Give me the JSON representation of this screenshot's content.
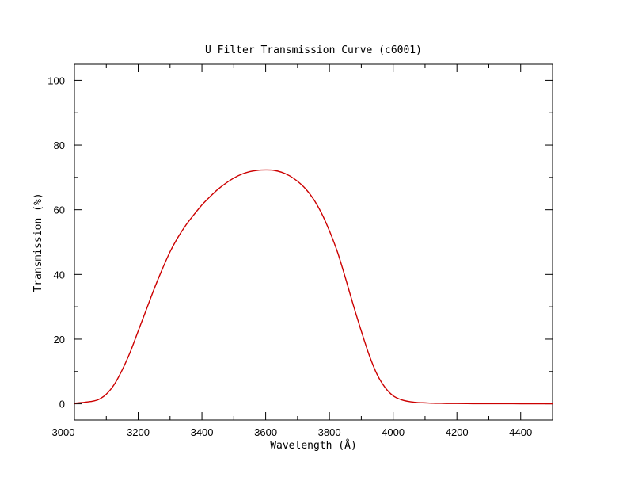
{
  "chart_data": {
    "type": "line",
    "title": "U Filter Transmission Curve (c6001)",
    "xlabel": "Wavelength (Å)",
    "ylabel": "Transmission (%)",
    "xlim": [
      3000,
      4500
    ],
    "ylim": [
      -5,
      105
    ],
    "x_ticks": [
      3000,
      3200,
      3400,
      3600,
      3800,
      4000,
      4200,
      4400
    ],
    "x_minor_ticks": [
      3100,
      3300,
      3500,
      3700,
      3900,
      4100,
      4300
    ],
    "y_ticks": [
      0,
      20,
      40,
      60,
      80,
      100
    ],
    "y_minor_ticks": [
      10,
      30,
      50,
      70,
      90
    ],
    "grid": false,
    "line_color": "#cc0000",
    "series": [
      {
        "x": [
          3000,
          3025,
          3050,
          3075,
          3100,
          3125,
          3150,
          3175,
          3200,
          3225,
          3250,
          3275,
          3300,
          3325,
          3350,
          3375,
          3400,
          3425,
          3450,
          3475,
          3500,
          3525,
          3550,
          3575,
          3600,
          3625,
          3650,
          3675,
          3700,
          3725,
          3750,
          3775,
          3800,
          3825,
          3850,
          3875,
          3900,
          3925,
          3950,
          3975,
          4000,
          4025,
          4050,
          4075,
          4100,
          4125,
          4150,
          4175,
          4200,
          4250,
          4300,
          4350,
          4400,
          4450,
          4500
        ],
        "y": [
          0.2,
          0.4,
          0.7,
          1.3,
          3.0,
          6.0,
          10.5,
          16.0,
          22.5,
          29.0,
          35.5,
          41.5,
          47.0,
          51.5,
          55.3,
          58.5,
          61.5,
          64.0,
          66.3,
          68.2,
          69.8,
          71.0,
          71.8,
          72.2,
          72.3,
          72.2,
          71.6,
          70.5,
          68.8,
          66.5,
          63.3,
          59.0,
          53.5,
          47.0,
          39.0,
          30.5,
          22.5,
          15.0,
          9.0,
          5.0,
          2.5,
          1.3,
          0.7,
          0.4,
          0.3,
          0.2,
          0.15,
          0.1,
          0.1,
          0.05,
          0.05,
          0.05,
          0.0,
          0.0,
          0.0
        ]
      }
    ]
  }
}
